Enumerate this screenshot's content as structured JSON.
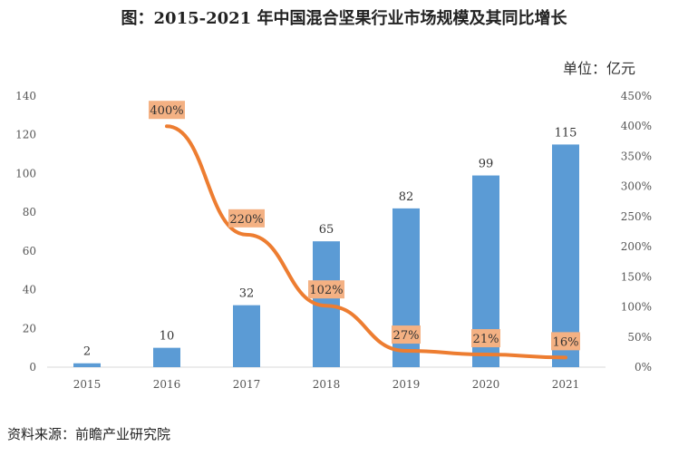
{
  "title": "图：2015-2021 年中国混合坚果行业市场规模及其同比增长",
  "unit": "单位：亿元",
  "source": "资料来源：前瞻产业研究院",
  "colors": {
    "bar": "#5b9bd5",
    "line": "#ed7d31",
    "label_bg": "#f4b183"
  },
  "chart_data": {
    "type": "bar",
    "categories": [
      "2015",
      "2016",
      "2017",
      "2018",
      "2019",
      "2020",
      "2021"
    ],
    "series": [
      {
        "name": "市场规模",
        "axis": "left",
        "type": "bar",
        "values": [
          2,
          10,
          32,
          65,
          82,
          99,
          115
        ],
        "labels": [
          "2",
          "10",
          "32",
          "65",
          "82",
          "99",
          "115"
        ]
      },
      {
        "name": "同比增长",
        "axis": "right",
        "type": "line",
        "x": [
          "2016",
          "2017",
          "2018",
          "2019",
          "2020",
          "2021"
        ],
        "values": [
          400,
          220,
          102,
          27,
          21,
          16
        ],
        "labels": [
          "400%",
          "220%",
          "102%",
          "27%",
          "21%",
          "16%"
        ]
      }
    ],
    "y_left": {
      "lim": [
        0,
        140
      ],
      "ticks": [
        "0",
        "20",
        "40",
        "60",
        "80",
        "100",
        "120",
        "140"
      ]
    },
    "y_right": {
      "lim": [
        0,
        450
      ],
      "ticks": [
        "0%",
        "50%",
        "100%",
        "150%",
        "200%",
        "250%",
        "300%",
        "350%",
        "400%",
        "450%"
      ]
    },
    "grid": false
  }
}
